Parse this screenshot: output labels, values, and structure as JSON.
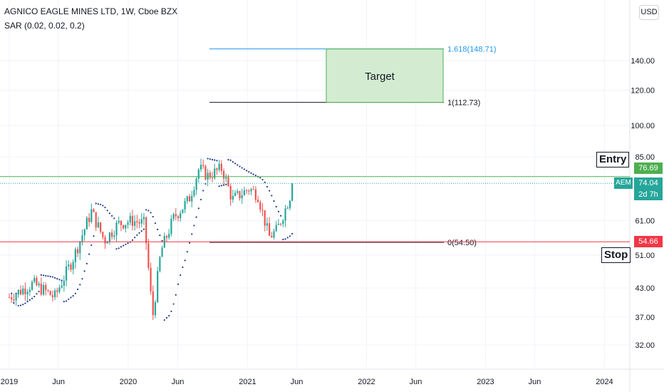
{
  "header": {
    "title": "AGNICO EAGLE MINES LTD, 1W, Cboe BZX",
    "indicator": "SAR (0.02, 0.02, 0.2)"
  },
  "currency_button": "USD",
  "chart_data": {
    "type": "candlestick",
    "y_scale": "log",
    "y_ticks": [
      "140.00",
      "120.00",
      "100.00",
      "85.00",
      "61.00",
      "51.00",
      "43.00",
      "37.00",
      "32.00"
    ],
    "x_ticks": [
      "2019",
      "Jun",
      "2020",
      "Jun",
      "2021",
      "Jun",
      "2022",
      "Jun",
      "2023",
      "Jun",
      "2024"
    ],
    "anchors": [
      {
        "date": "2019-01-01",
        "close": 41
      },
      {
        "date": "2019-03-15",
        "close": 44
      },
      {
        "date": "2019-05-20",
        "close": 41
      },
      {
        "date": "2019-07-15",
        "close": 50
      },
      {
        "date": "2019-09-10",
        "close": 64
      },
      {
        "date": "2019-10-20",
        "close": 55
      },
      {
        "date": "2019-12-01",
        "close": 60
      },
      {
        "date": "2020-01-15",
        "close": 61
      },
      {
        "date": "2020-02-20",
        "close": 60
      },
      {
        "date": "2020-03-16",
        "close": 37
      },
      {
        "date": "2020-04-10",
        "close": 52
      },
      {
        "date": "2020-05-20",
        "close": 62
      },
      {
        "date": "2020-07-05",
        "close": 68
      },
      {
        "date": "2020-08-05",
        "close": 80
      },
      {
        "date": "2020-09-01",
        "close": 77
      },
      {
        "date": "2020-10-15",
        "close": 80
      },
      {
        "date": "2020-11-15",
        "close": 68
      },
      {
        "date": "2021-01-05",
        "close": 72
      },
      {
        "date": "2021-02-01",
        "close": 70
      },
      {
        "date": "2021-03-08",
        "close": 56
      },
      {
        "date": "2021-04-01",
        "close": 58
      },
      {
        "date": "2021-05-01",
        "close": 66
      },
      {
        "date": "2021-05-24",
        "close": 74
      }
    ],
    "target_zone": {
      "label": "Target",
      "from": 112.73,
      "to": 148.71
    },
    "fib_labels": [
      {
        "text": "1.618(148.71)",
        "price": 148.71,
        "color": "#2196f3"
      },
      {
        "text": "1(112.73)",
        "price": 112.73,
        "color": "#131722"
      },
      {
        "text": "0(54.50)",
        "price": 54.5,
        "color": "#131722"
      }
    ],
    "entry": {
      "label": "Entry",
      "price": 76.69,
      "price_text": "76.69",
      "color": "#4caf50"
    },
    "stop": {
      "label": "Stop",
      "price": 54.66,
      "price_text": "54.66",
      "color": "#f23645"
    },
    "current": {
      "symbol": "AEM",
      "price": 74.04,
      "price_text": "74.04",
      "countdown": "2d 7h",
      "color": "#26a69a"
    }
  }
}
